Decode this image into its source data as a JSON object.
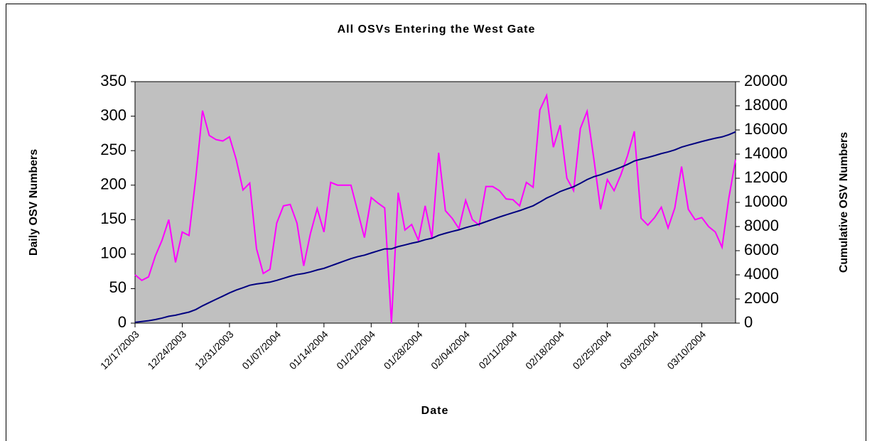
{
  "chart_data": {
    "type": "line",
    "title": "All OSVs Entering the West Gate",
    "x_label": "Date",
    "y_label": "Daily OSV Numbers",
    "y2_label": "Cumulative OSV Numbers",
    "categories": [
      "12/17/2003",
      null,
      null,
      null,
      null,
      null,
      null,
      "12/24/2003",
      null,
      null,
      null,
      null,
      null,
      null,
      "12/31/2003",
      null,
      null,
      null,
      null,
      null,
      null,
      "01/07/2004",
      null,
      null,
      null,
      null,
      null,
      null,
      "01/14/2004",
      null,
      null,
      null,
      null,
      null,
      null,
      "01/21/2004",
      null,
      null,
      null,
      null,
      null,
      null,
      "01/28/2004",
      null,
      null,
      null,
      null,
      null,
      null,
      "02/04/2004",
      null,
      null,
      null,
      null,
      null,
      null,
      "02/11/2004",
      null,
      null,
      null,
      null,
      null,
      null,
      "02/18/2004",
      null,
      null,
      null,
      null,
      null,
      null,
      "02/25/2004",
      null,
      null,
      null,
      null,
      null,
      null,
      "03/03/2004",
      null,
      null,
      null,
      null,
      null,
      null,
      "03/10/2004",
      null,
      null,
      null,
      null,
      null
    ],
    "series": [
      {
        "color": "#ff00ff",
        "values": [
          70,
          62,
          67,
          97,
          120,
          150,
          88,
          132,
          127,
          210,
          308,
          272,
          266,
          264,
          270,
          237,
          193,
          203,
          108,
          72,
          78,
          145,
          170,
          172,
          145,
          83,
          130,
          166,
          132,
          204,
          200,
          200,
          200,
          162,
          124,
          182,
          174,
          167,
          0,
          189,
          135,
          143,
          120,
          170,
          123,
          247,
          163,
          152,
          137,
          178,
          150,
          142,
          198,
          198,
          192,
          180,
          179,
          170,
          204,
          197,
          309,
          330,
          255,
          287,
          210,
          192,
          282,
          307,
          238,
          165,
          208,
          192,
          215,
          243,
          278,
          152,
          142,
          153,
          168,
          138,
          167,
          227,
          165,
          150,
          153,
          140,
          132,
          110,
          181,
          237
        ]
      },
      {
        "color": "#000080",
        "axis": "y2",
        "values": [
          70,
          132,
          199,
          296,
          416,
          566,
          654,
          786,
          913,
          1123,
          1431,
          1703,
          1969,
          2233,
          2503,
          2740,
          2933,
          3136,
          3244,
          3316,
          3394,
          3539,
          3709,
          3881,
          4026,
          4109,
          4239,
          4405,
          4537,
          4741,
          4941,
          5141,
          5341,
          5503,
          5627,
          5809,
          5983,
          6150,
          6150,
          6339,
          6474,
          6617,
          6737,
          6907,
          7030,
          7277,
          7440,
          7592,
          7729,
          7907,
          8057,
          8199,
          8397,
          8595,
          8787,
          8967,
          9146,
          9316,
          9520,
          9717,
          10026,
          10356,
          10611,
          10898,
          11108,
          11300,
          11582,
          11889,
          12127,
          12292,
          12500,
          12692,
          12907,
          13150,
          13428,
          13580,
          13722,
          13875,
          14043,
          14181,
          14348,
          14575,
          14740,
          14890,
          15043,
          15183,
          15315,
          15425,
          15606,
          15843
        ]
      }
    ],
    "ylim": [
      0,
      350
    ],
    "yticks": [
      0,
      50,
      100,
      150,
      200,
      250,
      300,
      350
    ],
    "y2lim": [
      0,
      20000
    ],
    "y2ticks": [
      0,
      2000,
      4000,
      6000,
      8000,
      10000,
      12000,
      14000,
      16000,
      18000,
      20000
    ],
    "plot_background": "#c0c0c0"
  }
}
